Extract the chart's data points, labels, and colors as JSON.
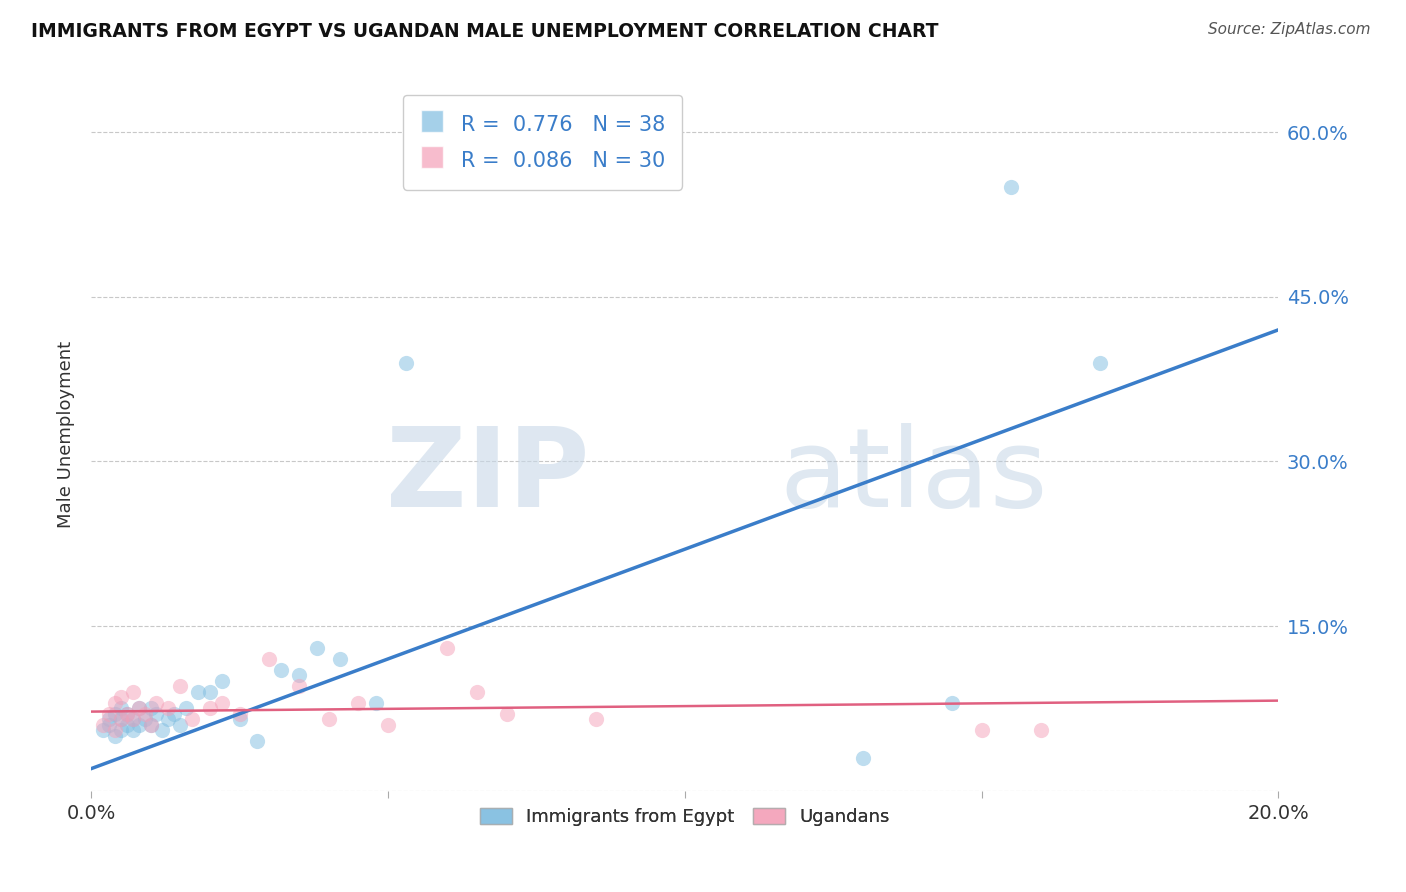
{
  "title": "IMMIGRANTS FROM EGYPT VS UGANDAN MALE UNEMPLOYMENT CORRELATION CHART",
  "source": "Source: ZipAtlas.com",
  "ylabel": "Male Unemployment",
  "xlim": [
    0.0,
    0.2
  ],
  "ylim": [
    0.0,
    0.65
  ],
  "yticks": [
    0.0,
    0.15,
    0.3,
    0.45,
    0.6
  ],
  "ytick_labels": [
    "",
    "15.0%",
    "30.0%",
    "45.0%",
    "60.0%"
  ],
  "xticks": [
    0.0,
    0.05,
    0.1,
    0.15,
    0.2
  ],
  "xtick_labels": [
    "0.0%",
    "",
    "",
    "",
    "20.0%"
  ],
  "blue_color": "#7fbde0",
  "pink_color": "#f4a0b8",
  "blue_line_color": "#3a7dc9",
  "pink_line_color": "#e06080",
  "watermark_zip": "ZIP",
  "watermark_atlas": "atlas",
  "blue_scatter_x": [
    0.002,
    0.003,
    0.003,
    0.004,
    0.004,
    0.005,
    0.005,
    0.005,
    0.006,
    0.006,
    0.007,
    0.007,
    0.008,
    0.008,
    0.009,
    0.01,
    0.01,
    0.011,
    0.012,
    0.013,
    0.014,
    0.015,
    0.016,
    0.018,
    0.02,
    0.022,
    0.025,
    0.028,
    0.032,
    0.035,
    0.038,
    0.042,
    0.048,
    0.053,
    0.13,
    0.145,
    0.155,
    0.17
  ],
  "blue_scatter_y": [
    0.055,
    0.06,
    0.065,
    0.05,
    0.07,
    0.055,
    0.065,
    0.075,
    0.06,
    0.07,
    0.055,
    0.065,
    0.06,
    0.075,
    0.065,
    0.06,
    0.075,
    0.07,
    0.055,
    0.065,
    0.07,
    0.06,
    0.075,
    0.09,
    0.09,
    0.1,
    0.065,
    0.045,
    0.11,
    0.105,
    0.13,
    0.12,
    0.08,
    0.39,
    0.03,
    0.08,
    0.55,
    0.39
  ],
  "pink_scatter_x": [
    0.002,
    0.003,
    0.004,
    0.004,
    0.005,
    0.005,
    0.006,
    0.007,
    0.007,
    0.008,
    0.009,
    0.01,
    0.011,
    0.013,
    0.015,
    0.017,
    0.02,
    0.022,
    0.025,
    0.03,
    0.035,
    0.04,
    0.045,
    0.05,
    0.06,
    0.065,
    0.07,
    0.085,
    0.15,
    0.16
  ],
  "pink_scatter_y": [
    0.06,
    0.07,
    0.055,
    0.08,
    0.065,
    0.085,
    0.07,
    0.065,
    0.09,
    0.075,
    0.07,
    0.06,
    0.08,
    0.075,
    0.095,
    0.065,
    0.075,
    0.08,
    0.07,
    0.12,
    0.095,
    0.065,
    0.08,
    0.06,
    0.13,
    0.09,
    0.07,
    0.065,
    0.055,
    0.055
  ],
  "blue_line_x": [
    0.0,
    0.2
  ],
  "blue_line_y": [
    0.02,
    0.42
  ],
  "pink_line_x": [
    0.0,
    0.2
  ],
  "pink_line_y": [
    0.072,
    0.082
  ],
  "background_color": "#ffffff",
  "grid_color": "#c8c8c8"
}
